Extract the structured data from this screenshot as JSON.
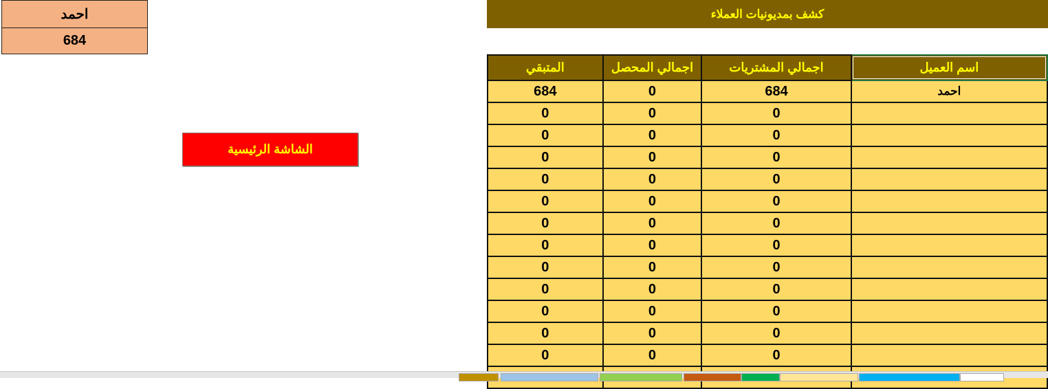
{
  "customer_box": {
    "name": "احمد",
    "remaining": "684"
  },
  "title": "كشف بمديونيات العملاء",
  "home_button": "الشاشة الرئيسية",
  "table": {
    "headers": [
      "المتبقي",
      "اجمالي المحصل",
      "اجمالي المشتريات",
      "اسم العميل"
    ],
    "rows": [
      [
        "684",
        "0",
        "684",
        "احمد"
      ],
      [
        "0",
        "0",
        "0",
        ""
      ],
      [
        "0",
        "0",
        "0",
        ""
      ],
      [
        "0",
        "0",
        "0",
        ""
      ],
      [
        "0",
        "0",
        "0",
        ""
      ],
      [
        "0",
        "0",
        "0",
        ""
      ],
      [
        "0",
        "0",
        "0",
        ""
      ],
      [
        "0",
        "0",
        "0",
        ""
      ],
      [
        "0",
        "0",
        "0",
        ""
      ],
      [
        "0",
        "0",
        "0",
        ""
      ],
      [
        "0",
        "0",
        "0",
        ""
      ],
      [
        "0",
        "0",
        "0",
        ""
      ],
      [
        "0",
        "0",
        "0",
        ""
      ],
      [
        "",
        "",
        "",
        ""
      ]
    ]
  },
  "colors": {
    "header_bg": "#7f6000",
    "header_text": "#ffff00",
    "row_bg": "#ffd966",
    "box_bg": "#f4b183",
    "button_bg": "#ff0000"
  },
  "sheet_tab_colors": [
    "#bf9000",
    "#9dc3e6",
    "#92d050",
    "#c55a11",
    "#00b050",
    "#ffe699",
    "#00b0f0",
    "#ffffff"
  ]
}
